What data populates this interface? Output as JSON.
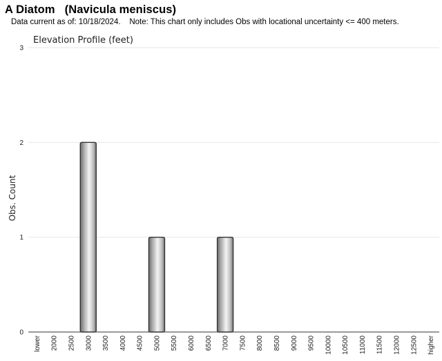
{
  "header": {
    "title": "A Diatom   (Navicula meniscus)",
    "subtitle": "Data current as of: 10/18/2024.    Note: This chart only includes Obs with locational uncertainty <= 400 meters."
  },
  "chart_data": {
    "type": "bar",
    "title": "Elevation Profile (feet)",
    "xlabel": "",
    "ylabel": "Obs. Count",
    "categories": [
      "lower",
      "2000",
      "2500",
      "3000",
      "3500",
      "4000",
      "4500",
      "5000",
      "5500",
      "6000",
      "6500",
      "7000",
      "7500",
      "8000",
      "8500",
      "9000",
      "9500",
      "10000",
      "10500",
      "11000",
      "11500",
      "12000",
      "12500",
      "higher"
    ],
    "values": [
      0,
      0,
      0,
      2,
      0,
      0,
      0,
      1,
      0,
      0,
      0,
      1,
      0,
      0,
      0,
      0,
      0,
      0,
      0,
      0,
      0,
      0,
      0,
      0
    ],
    "ylim": [
      0,
      3
    ],
    "yticks": [
      0,
      1,
      2,
      3
    ],
    "grid": true,
    "bar_color": "#b0b0b0",
    "bar_stroke": "#333333",
    "grid_color": "#e6e6e6"
  }
}
